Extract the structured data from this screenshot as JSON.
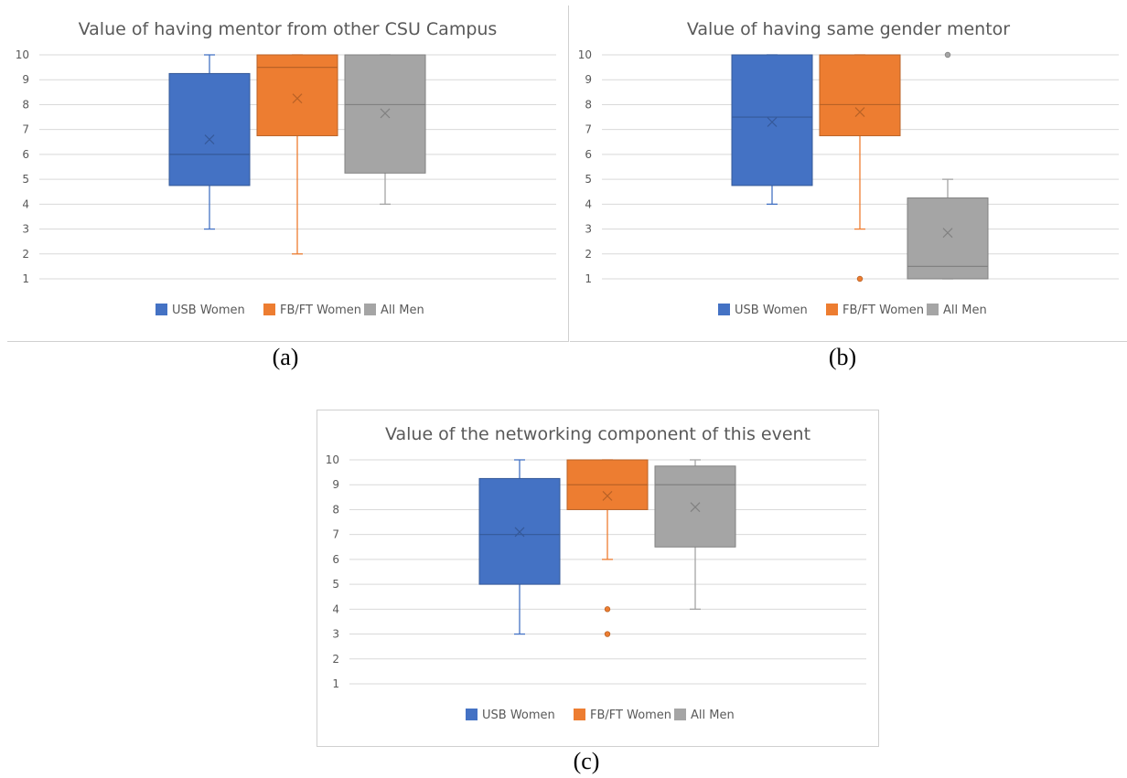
{
  "captions": [
    "(a)",
    "(b)",
    "(c)"
  ],
  "chart_data": [
    {
      "type": "box",
      "title": "Value of having mentor from other CSU Campus",
      "ylim": [
        1,
        10
      ],
      "y_ticks": [
        "1",
        "2",
        "3",
        "4",
        "5",
        "6",
        "7",
        "8",
        "9",
        "10"
      ],
      "grid": true,
      "legend_position": "bottom",
      "series": [
        {
          "name": "USB Women",
          "color": "#4472C4",
          "min": 3,
          "q1": 4.75,
          "median": 6,
          "q3": 9.25,
          "max": 10,
          "mean": 6.6,
          "outliers": []
        },
        {
          "name": "FB/FT Women",
          "color": "#ED7D31",
          "min": 2,
          "q1": 6.75,
          "median": 9.5,
          "q3": 10,
          "max": 10,
          "mean": 8.25,
          "outliers": []
        },
        {
          "name": "All Men",
          "color": "#A5A5A5",
          "min": 4,
          "q1": 5.25,
          "median": 8,
          "q3": 10,
          "max": 10,
          "mean": 7.65,
          "outliers": []
        }
      ]
    },
    {
      "type": "box",
      "title": "Value of having same gender mentor",
      "ylim": [
        1,
        10
      ],
      "y_ticks": [
        "1",
        "2",
        "3",
        "4",
        "5",
        "6",
        "7",
        "8",
        "9",
        "10"
      ],
      "grid": true,
      "legend_position": "bottom",
      "series": [
        {
          "name": "USB Women",
          "color": "#4472C4",
          "min": 4,
          "q1": 4.75,
          "median": 7.5,
          "q3": 10,
          "max": 10,
          "mean": 7.3,
          "outliers": []
        },
        {
          "name": "FB/FT Women",
          "color": "#ED7D31",
          "min": 3,
          "q1": 6.75,
          "median": 8,
          "q3": 10,
          "max": 10,
          "mean": 7.7,
          "outliers": [
            1
          ]
        },
        {
          "name": "All Men",
          "color": "#A5A5A5",
          "min": 1,
          "q1": 1,
          "median": 1.5,
          "q3": 4.25,
          "max": 5,
          "mean": 2.85,
          "outliers": [
            10
          ]
        }
      ]
    },
    {
      "type": "box",
      "title": "Value of the networking component of this event",
      "ylim": [
        1,
        10
      ],
      "y_ticks": [
        "1",
        "2",
        "3",
        "4",
        "5",
        "6",
        "7",
        "8",
        "9",
        "10"
      ],
      "grid": true,
      "legend_position": "bottom",
      "series": [
        {
          "name": "USB Women",
          "color": "#4472C4",
          "min": 3,
          "q1": 5,
          "median": 7,
          "q3": 9.25,
          "max": 10,
          "mean": 7.1,
          "outliers": []
        },
        {
          "name": "FB/FT Women",
          "color": "#ED7D31",
          "min": 6,
          "q1": 8,
          "median": 9,
          "q3": 10,
          "max": 10,
          "mean": 8.55,
          "outliers": [
            4,
            3
          ]
        },
        {
          "name": "All Men",
          "color": "#A5A5A5",
          "min": 4,
          "q1": 6.5,
          "median": 9,
          "q3": 9.75,
          "max": 10,
          "mean": 8.1,
          "outliers": []
        }
      ]
    }
  ]
}
